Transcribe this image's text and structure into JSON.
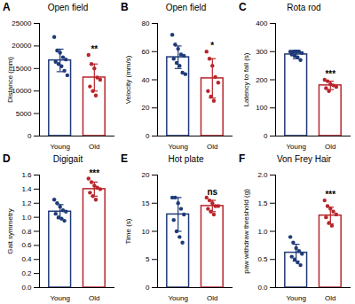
{
  "chart_data": [
    {
      "type": "bar",
      "panel": "A",
      "title": "Open field",
      "ylabel": "Distance (mm)",
      "categories": [
        "Young",
        "Old"
      ],
      "values": [
        16800,
        13000
      ],
      "errors": [
        2500,
        3000
      ],
      "points": [
        [
          22000,
          19000,
          18500,
          17500,
          17000,
          16500,
          16000,
          15500,
          14500,
          13500
        ],
        [
          18000,
          16000,
          15000,
          13000,
          12500,
          11000,
          10000,
          9000
        ]
      ],
      "colors": [
        "#1f3a78",
        "#b8252b"
      ],
      "ylim": [
        0,
        25000
      ],
      "yticks": [
        0,
        5000,
        10000,
        15000,
        20000,
        25000
      ],
      "annotation": "**"
    },
    {
      "type": "bar",
      "panel": "B",
      "title": "Open field",
      "ylabel": "Velocity (mm/s)",
      "categories": [
        "Young",
        "Old"
      ],
      "values": [
        56,
        41
      ],
      "errors": [
        8,
        14
      ],
      "points": [
        [
          72,
          65,
          62,
          58,
          57,
          55,
          52,
          50,
          45,
          44
        ],
        [
          60,
          55,
          50,
          42,
          38,
          32,
          28,
          25
        ]
      ],
      "colors": [
        "#1f3a78",
        "#b8252b"
      ],
      "ylim": [
        0,
        80
      ],
      "yticks": [
        0,
        20,
        40,
        60,
        80
      ],
      "annotation": "*"
    },
    {
      "type": "bar",
      "panel": "C",
      "title": "Rota rod",
      "ylabel": "Latency to fall (s)",
      "categories": [
        "Young",
        "Old"
      ],
      "values": [
        290,
        180
      ],
      "errors": [
        15,
        15
      ],
      "points": [
        [
          300,
          300,
          300,
          300,
          295,
          290,
          285,
          280,
          270
        ],
        [
          200,
          195,
          185,
          180,
          175,
          170,
          160
        ]
      ],
      "colors": [
        "#1f3a78",
        "#b8252b"
      ],
      "ylim": [
        0,
        400
      ],
      "yticks": [
        0,
        100,
        200,
        300,
        400
      ],
      "annotation": "***"
    },
    {
      "type": "bar",
      "panel": "D",
      "title": "Digigait",
      "ylabel": "Gait symmetry",
      "categories": [
        "Young",
        "Old"
      ],
      "values": [
        1.08,
        1.4
      ],
      "errors": [
        0.1,
        0.1
      ],
      "points": [
        [
          1.25,
          1.2,
          1.15,
          1.1,
          1.08,
          1.05,
          1.0,
          0.98,
          0.95
        ],
        [
          1.55,
          1.5,
          1.45,
          1.42,
          1.4,
          1.35,
          1.3,
          1.25
        ]
      ],
      "colors": [
        "#1f3a78",
        "#b8252b"
      ],
      "ylim": [
        0,
        1.6
      ],
      "yticks": [
        {
          "value": 0,
          "label": "0.0"
        },
        0.2,
        0.4,
        0.6,
        0.8,
        {
          "value": 1,
          "label": "1.0"
        },
        1.2,
        1.4,
        1.6
      ],
      "annotation": "***"
    },
    {
      "type": "bar",
      "panel": "E",
      "title": "Hot plate",
      "ylabel": "Time (s)",
      "categories": [
        "Young",
        "Old"
      ],
      "values": [
        13,
        14.5
      ],
      "errors": [
        3,
        1
      ],
      "points": [
        [
          16,
          16,
          15,
          14,
          13,
          12,
          10,
          9,
          8
        ],
        [
          16,
          15.5,
          15,
          14.5,
          14.5,
          14,
          13.5,
          13
        ]
      ],
      "colors": [
        "#1f3a78",
        "#b8252b"
      ],
      "ylim": [
        0,
        20
      ],
      "yticks": [
        0,
        5,
        10,
        15,
        20
      ],
      "annotation": "ns"
    },
    {
      "type": "bar",
      "panel": "F",
      "title": "Von Frey Hair",
      "ylabel": "paw withdraw threshold (g)",
      "categories": [
        "Young",
        "Old"
      ],
      "values": [
        0.62,
        1.28
      ],
      "errors": [
        0.15,
        0.15
      ],
      "points": [
        [
          0.9,
          0.8,
          0.7,
          0.65,
          0.6,
          0.55,
          0.5,
          0.45,
          0.4
        ],
        [
          1.55,
          1.45,
          1.4,
          1.35,
          1.3,
          1.25,
          1.15,
          1.1
        ]
      ],
      "colors": [
        "#1f3a78",
        "#b8252b"
      ],
      "ylim": [
        0,
        2.0
      ],
      "yticks": [
        {
          "value": 0,
          "label": "0.0"
        },
        0.5,
        {
          "value": 1,
          "label": "1.0"
        },
        1.5,
        {
          "value": 2,
          "label": "2.0"
        }
      ],
      "annotation": "***"
    }
  ]
}
